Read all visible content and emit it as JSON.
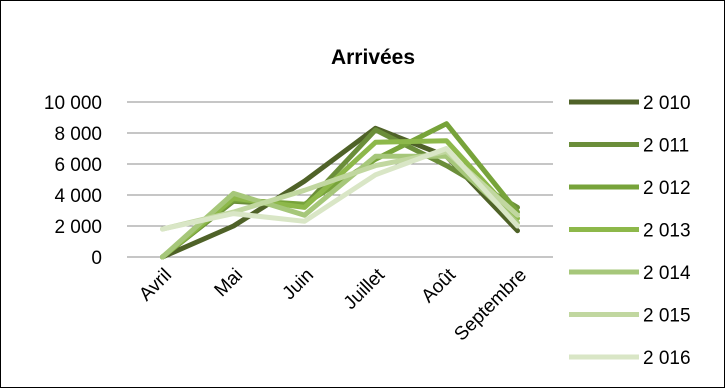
{
  "chart_data": {
    "type": "line",
    "title": "Arrivées",
    "categories": [
      "Avril",
      "Mai",
      "Juin",
      "Juillet",
      "Août",
      "Septembre"
    ],
    "ylim": [
      0,
      10000
    ],
    "yticks": [
      {
        "value": 0,
        "label": "0"
      },
      {
        "value": 2000,
        "label": "2 000"
      },
      {
        "value": 4000,
        "label": "4 000"
      },
      {
        "value": 6000,
        "label": "6 000"
      },
      {
        "value": 8000,
        "label": "8 000"
      },
      {
        "value": 10000,
        "label": "10 000"
      }
    ],
    "grid": true,
    "legend_position": "right",
    "series": [
      {
        "name": "2 010",
        "color": "#4f6228",
        "values": [
          0,
          2000,
          4900,
          8300,
          6500,
          1700
        ]
      },
      {
        "name": "2 011",
        "color": "#6b8e3a",
        "values": [
          0,
          3600,
          3300,
          8200,
          5900,
          3200
        ]
      },
      {
        "name": "2 012",
        "color": "#77a33a",
        "values": [
          0,
          3700,
          3400,
          6300,
          8600,
          2900
        ]
      },
      {
        "name": "2 013",
        "color": "#8db84a",
        "values": [
          0,
          3800,
          3200,
          7400,
          7500,
          2500
        ]
      },
      {
        "name": "2 014",
        "color": "#a6c77a",
        "values": [
          0,
          4100,
          2700,
          6500,
          6500,
          2200
        ]
      },
      {
        "name": "2 015",
        "color": "#c1d7a0",
        "values": [
          1800,
          2900,
          4300,
          5900,
          6800,
          2700
        ]
      },
      {
        "name": "2 016",
        "color": "#d9e6c6",
        "values": [
          1800,
          2800,
          2300,
          5300,
          7000,
          2000
        ]
      }
    ]
  }
}
